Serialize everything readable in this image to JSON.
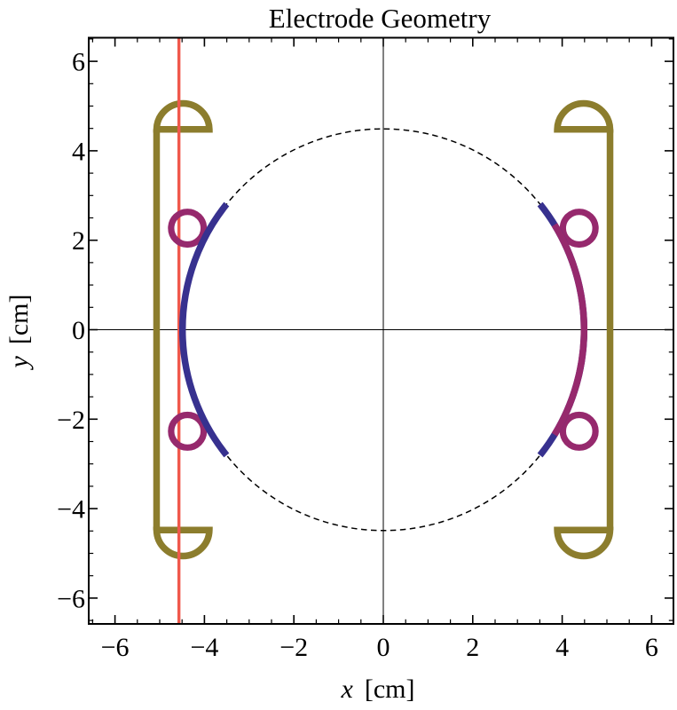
{
  "figure": {
    "title": "Electrode Geometry",
    "x_axis": {
      "var": "x",
      "unit": "[cm]"
    },
    "y_axis": {
      "var": "y",
      "unit": "[cm]"
    }
  },
  "chart_data": {
    "type": "geometric-plot",
    "title": "Electrode Geometry",
    "xlabel": "x [cm]",
    "ylabel": "y [cm]",
    "xlim": [
      -6.59,
      6.49
    ],
    "ylim": [
      -6.53,
      6.56
    ],
    "grid": false,
    "x_tick_values": [
      -6,
      -4,
      -2,
      0,
      2,
      4,
      6
    ],
    "x_tick_labels": [
      "−6",
      "−4",
      "−2",
      "0",
      "2",
      "4",
      "6"
    ],
    "y_tick_values": [
      -6,
      -4,
      -2,
      0,
      2,
      4,
      6
    ],
    "y_tick_labels": [
      "−6",
      "−4",
      "−2",
      "0",
      "2",
      "4",
      "6"
    ],
    "minor_tick_step": 0.5,
    "colors": {
      "guide_circle": "#000000",
      "blue_electrode": "#37318F",
      "purple_electrode": "#96296D",
      "shield": "#8C7D2D",
      "red_line": "#F0584C",
      "axes": "#000000"
    },
    "elements": {
      "guide_circle": {
        "type": "circle",
        "center": [
          0,
          0
        ],
        "radius": 4.49,
        "style": "dashed"
      },
      "arcs": [
        {
          "name": "left-blue-electrode-arc",
          "center": [
            0,
            0
          ],
          "radius": 4.49,
          "angles_deg": [
            141.3,
            218.7
          ],
          "color_key": "blue_electrode"
        },
        {
          "name": "right-blue-electrode-arc",
          "center": [
            0,
            0
          ],
          "radius": 4.49,
          "angles_deg": [
            -38.7,
            38.7
          ],
          "color_key": "blue_electrode"
        },
        {
          "name": "right-purple-electrode-arc",
          "center": [
            0,
            0
          ],
          "radius": 4.49,
          "angles_deg": [
            -31.5,
            31.5
          ],
          "color_key": "purple_electrode"
        }
      ],
      "rings": {
        "radius": 0.365,
        "color_key": "purple_electrode",
        "centers": [
          [
            -4.38,
            2.27
          ],
          [
            -4.38,
            -2.27
          ],
          [
            4.38,
            2.27
          ],
          [
            4.38,
            -2.27
          ]
        ]
      },
      "rails": {
        "color_key": "shield",
        "x_positions": [
          -5.07,
          5.07
        ],
        "y_range": [
          -4.48,
          4.48
        ]
      },
      "caps": {
        "color_key": "shield",
        "radius": 0.59,
        "items": [
          {
            "center": [
              -4.48,
              4.48
            ],
            "dir": "up"
          },
          {
            "center": [
              -4.48,
              -4.48
            ],
            "dir": "down"
          },
          {
            "center": [
              4.48,
              4.48
            ],
            "dir": "up"
          },
          {
            "center": [
              4.48,
              -4.48
            ],
            "dir": "down"
          }
        ]
      },
      "red_line": {
        "x": -4.57,
        "orientation": "vertical",
        "color_key": "red_line"
      }
    }
  }
}
